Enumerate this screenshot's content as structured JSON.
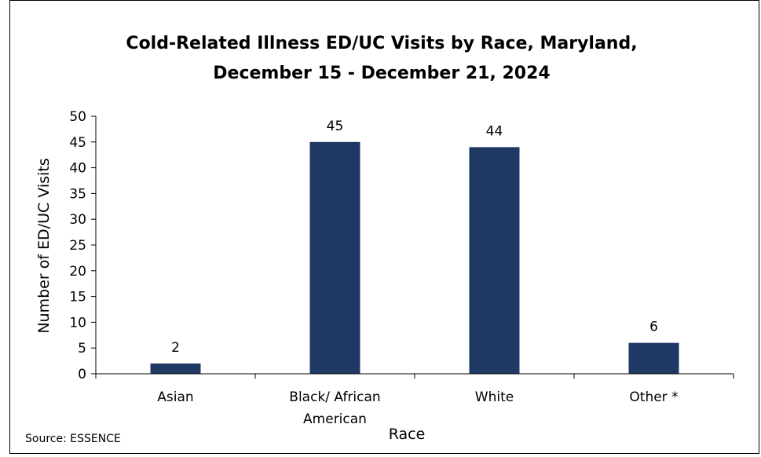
{
  "chart_data": {
    "type": "bar",
    "title_lines": [
      "Cold-Related Illness ED/UC Visits by Race, Maryland,",
      "December 15 - December 21, 2024"
    ],
    "categories": [
      [
        "Asian"
      ],
      [
        "Black/ African",
        "American"
      ],
      [
        "White"
      ],
      [
        "Other *"
      ]
    ],
    "values": [
      2,
      45,
      44,
      6
    ],
    "ylabel": "Number of ED/UC Visits",
    "xlabel": "Race",
    "ylim": [
      0,
      50
    ],
    "yticks": [
      0,
      5,
      10,
      15,
      20,
      25,
      30,
      35,
      40,
      45,
      50
    ],
    "bar_color": "#203864",
    "grid": false,
    "source": "Source: ESSENCE"
  }
}
